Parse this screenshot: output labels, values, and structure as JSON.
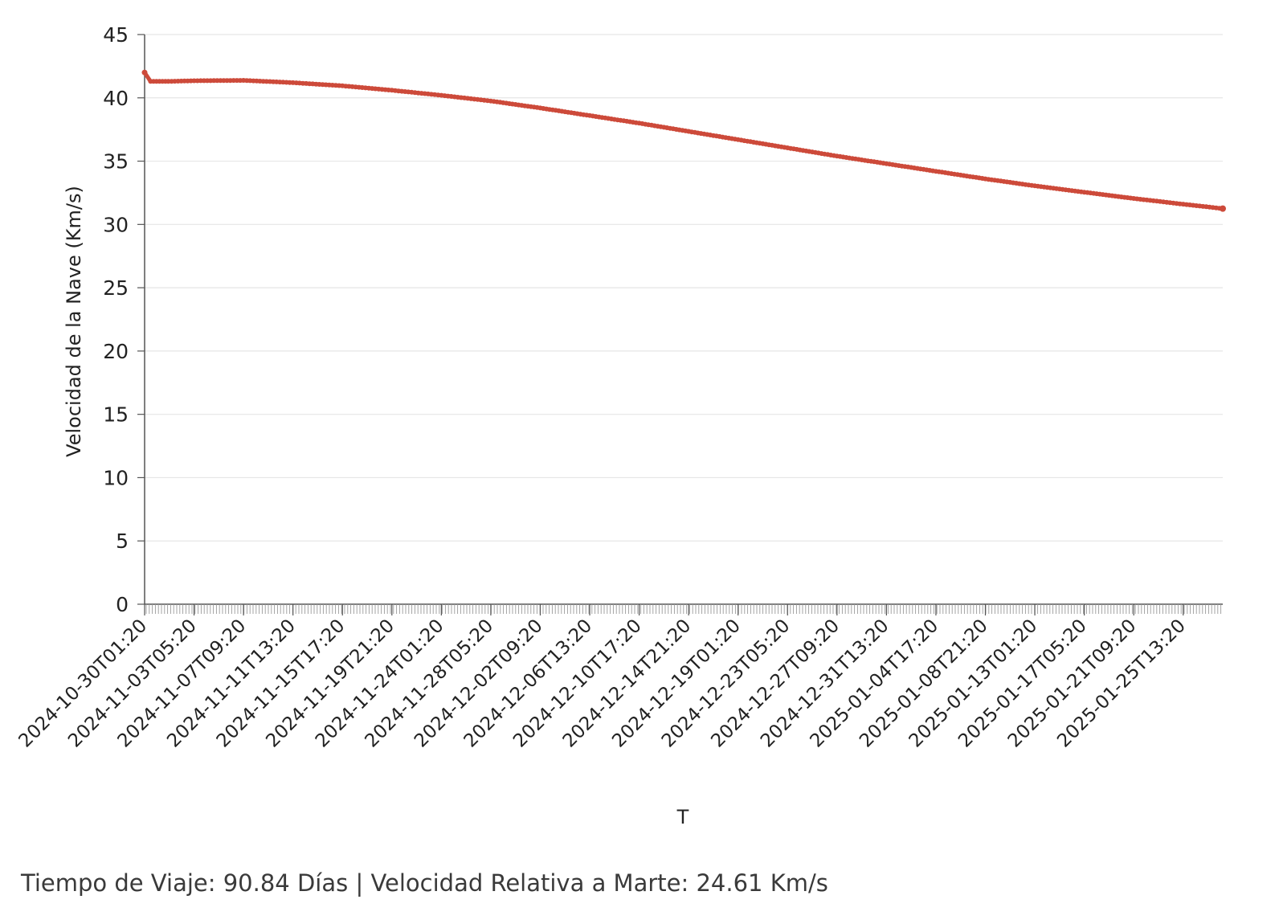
{
  "footer": {
    "text": "Tiempo de Viaje: 90.84 Días | Velocidad Relativa a Marte: 24.61 Km/s"
  },
  "chart_data": {
    "type": "line",
    "title": "",
    "xlabel": "T",
    "ylabel": "Velocidad de la Nave (Km/s)",
    "ylim": [
      0,
      45
    ],
    "yticks": [
      0,
      5,
      10,
      15,
      20,
      25,
      30,
      35,
      40,
      45
    ],
    "xlim": [
      "2024-10-30T01:20",
      "2025-01-28T21:20"
    ],
    "xtick_labels": [
      "2024-10-30T01:20",
      "2024-11-03T05:20",
      "2024-11-07T09:20",
      "2024-11-11T13:20",
      "2024-11-15T17:20",
      "2024-11-19T21:20",
      "2024-11-24T01:20",
      "2024-11-28T05:20",
      "2024-12-02T09:20",
      "2024-12-06T13:20",
      "2024-12-10T17:20",
      "2024-12-14T21:20",
      "2024-12-19T01:20",
      "2024-12-23T05:20",
      "2024-12-27T09:20",
      "2024-12-31T13:20",
      "2025-01-04T17:20",
      "2025-01-08T21:20",
      "2025-01-13T01:20",
      "2025-01-17T05:20",
      "2025-01-21T09:20",
      "2025-01-25T13:20"
    ],
    "grid": true,
    "series": [
      {
        "color": "#cd4a3a",
        "marker": "circle",
        "points": [
          {
            "x": "2024-10-30T01:20",
            "y": 42.0
          },
          {
            "x": "2024-10-30T13:20",
            "y": 41.3
          },
          {
            "x": "2024-11-01T01:20",
            "y": 41.3
          },
          {
            "x": "2024-11-03T05:20",
            "y": 41.35
          },
          {
            "x": "2024-11-07T09:20",
            "y": 41.38
          },
          {
            "x": "2024-11-11T13:20",
            "y": 41.2
          },
          {
            "x": "2024-11-15T17:20",
            "y": 40.95
          },
          {
            "x": "2024-11-19T21:20",
            "y": 40.6
          },
          {
            "x": "2024-11-24T01:20",
            "y": 40.2
          },
          {
            "x": "2024-11-28T05:20",
            "y": 39.75
          },
          {
            "x": "2024-12-02T09:20",
            "y": 39.2
          },
          {
            "x": "2024-12-06T13:20",
            "y": 38.6
          },
          {
            "x": "2024-12-10T17:20",
            "y": 38.0
          },
          {
            "x": "2024-12-14T21:20",
            "y": 37.35
          },
          {
            "x": "2024-12-19T01:20",
            "y": 36.7
          },
          {
            "x": "2024-12-23T05:20",
            "y": 36.05
          },
          {
            "x": "2024-12-27T09:20",
            "y": 35.4
          },
          {
            "x": "2024-12-31T13:20",
            "y": 34.8
          },
          {
            "x": "2025-01-04T17:20",
            "y": 34.2
          },
          {
            "x": "2025-01-08T21:20",
            "y": 33.6
          },
          {
            "x": "2025-01-13T01:20",
            "y": 33.05
          },
          {
            "x": "2025-01-17T05:20",
            "y": 32.55
          },
          {
            "x": "2025-01-21T09:20",
            "y": 32.05
          },
          {
            "x": "2025-01-25T13:20",
            "y": 31.6
          },
          {
            "x": "2025-01-28T21:20",
            "y": 31.25
          }
        ]
      }
    ]
  }
}
